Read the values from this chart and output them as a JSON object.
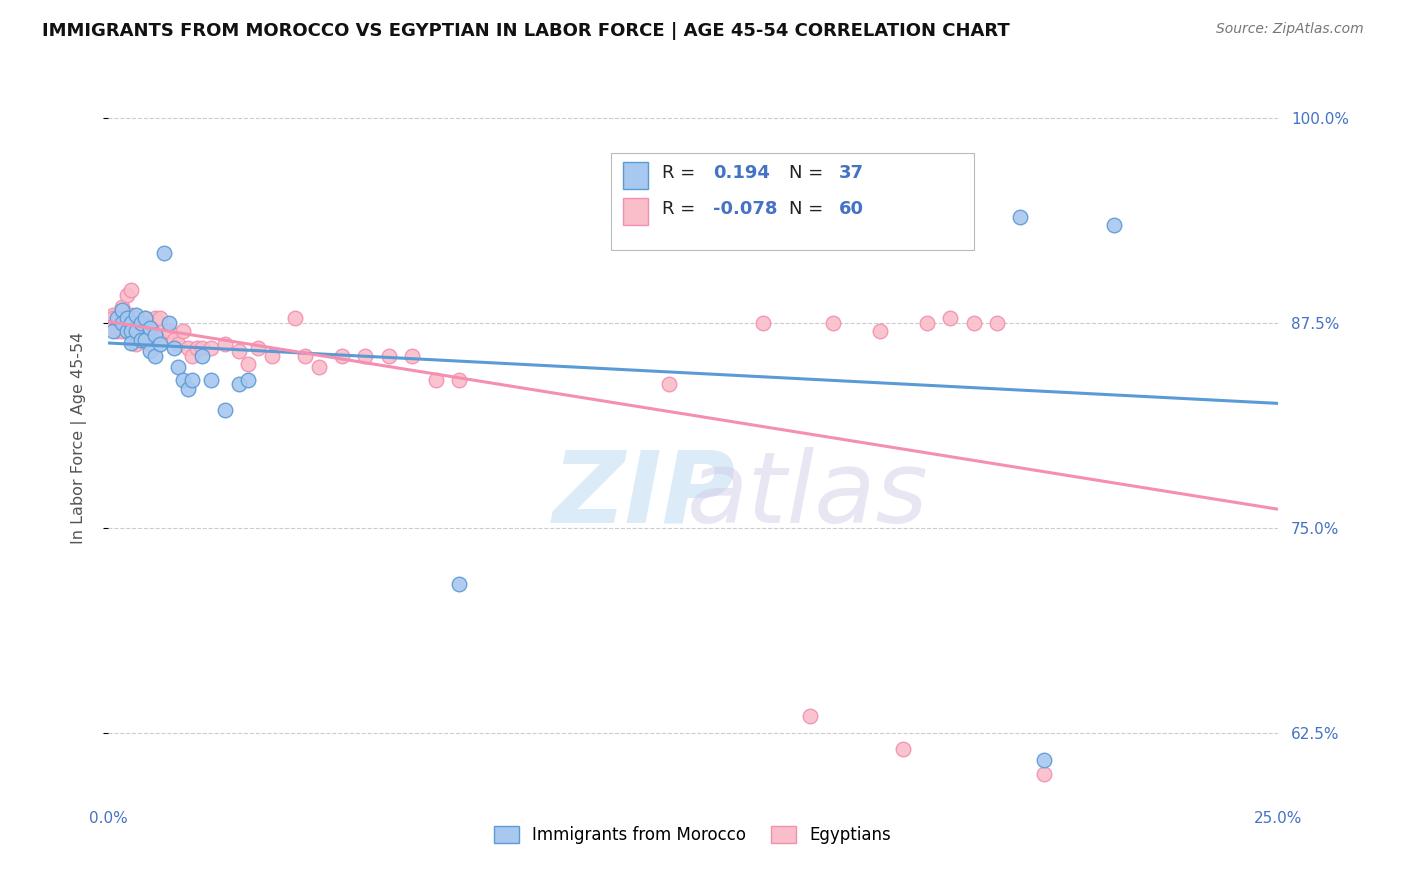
{
  "title": "IMMIGRANTS FROM MOROCCO VS EGYPTIAN IN LABOR FORCE | AGE 45-54 CORRELATION CHART",
  "source": "Source: ZipAtlas.com",
  "ylabel": "In Labor Force | Age 45-54",
  "xlim": [
    0.0,
    0.25
  ],
  "ylim": [
    0.585,
    1.025
  ],
  "xticks": [
    0.0,
    0.05,
    0.1,
    0.15,
    0.2,
    0.25
  ],
  "xticklabels": [
    "0.0%",
    "",
    "",
    "",
    "",
    "25.0%"
  ],
  "yticks": [
    0.625,
    0.75,
    0.875,
    1.0
  ],
  "yticklabels": [
    "62.5%",
    "75.0%",
    "87.5%",
    "100.0%"
  ],
  "legend_r_morocco": "0.194",
  "legend_n_morocco": "37",
  "legend_r_egyptian": "-0.078",
  "legend_n_egyptian": "60",
  "color_morocco": "#a8c8f0",
  "color_egyptian": "#f9bec9",
  "color_line_morocco": "#5b9bd5",
  "color_line_egyptian": "#f48fb1",
  "watermark_zip": "ZIP",
  "watermark_atlas": "atlas",
  "morocco_x": [
    0.001,
    0.002,
    0.003,
    0.003,
    0.004,
    0.004,
    0.005,
    0.005,
    0.005,
    0.006,
    0.006,
    0.007,
    0.007,
    0.008,
    0.008,
    0.009,
    0.009,
    0.01,
    0.01,
    0.011,
    0.012,
    0.013,
    0.014,
    0.015,
    0.016,
    0.017,
    0.018,
    0.02,
    0.022,
    0.025,
    0.028,
    0.03,
    0.075,
    0.16,
    0.195,
    0.2,
    0.215
  ],
  "morocco_y": [
    0.87,
    0.878,
    0.883,
    0.875,
    0.87,
    0.878,
    0.875,
    0.87,
    0.863,
    0.88,
    0.87,
    0.875,
    0.865,
    0.878,
    0.865,
    0.872,
    0.858,
    0.868,
    0.855,
    0.862,
    0.918,
    0.875,
    0.86,
    0.848,
    0.84,
    0.835,
    0.84,
    0.855,
    0.84,
    0.822,
    0.838,
    0.84,
    0.716,
    0.93,
    0.94,
    0.608,
    0.935
  ],
  "egyptian_x": [
    0.001,
    0.001,
    0.002,
    0.002,
    0.003,
    0.003,
    0.003,
    0.004,
    0.004,
    0.005,
    0.005,
    0.005,
    0.006,
    0.006,
    0.006,
    0.007,
    0.007,
    0.008,
    0.008,
    0.009,
    0.009,
    0.01,
    0.01,
    0.011,
    0.011,
    0.012,
    0.013,
    0.014,
    0.015,
    0.016,
    0.017,
    0.018,
    0.019,
    0.02,
    0.022,
    0.025,
    0.028,
    0.03,
    0.032,
    0.035,
    0.04,
    0.042,
    0.045,
    0.05,
    0.055,
    0.06,
    0.065,
    0.07,
    0.075,
    0.12,
    0.14,
    0.15,
    0.155,
    0.165,
    0.17,
    0.175,
    0.18,
    0.185,
    0.19,
    0.2
  ],
  "egyptian_y": [
    0.88,
    0.878,
    0.876,
    0.87,
    0.885,
    0.878,
    0.87,
    0.892,
    0.875,
    0.895,
    0.88,
    0.87,
    0.878,
    0.87,
    0.862,
    0.875,
    0.865,
    0.878,
    0.868,
    0.875,
    0.862,
    0.878,
    0.868,
    0.878,
    0.865,
    0.87,
    0.87,
    0.865,
    0.862,
    0.87,
    0.86,
    0.855,
    0.86,
    0.86,
    0.86,
    0.862,
    0.858,
    0.85,
    0.86,
    0.855,
    0.878,
    0.855,
    0.848,
    0.855,
    0.855,
    0.855,
    0.855,
    0.84,
    0.84,
    0.838,
    0.875,
    0.635,
    0.875,
    0.87,
    0.615,
    0.875,
    0.878,
    0.875,
    0.875,
    0.6
  ]
}
